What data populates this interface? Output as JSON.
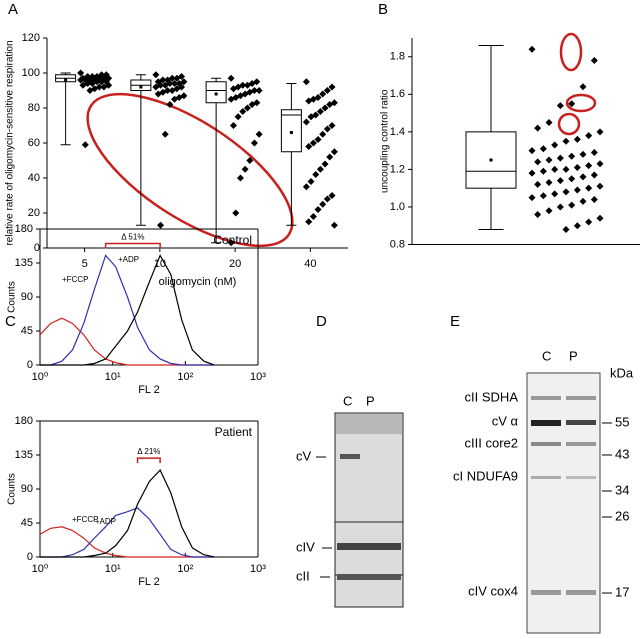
{
  "panels": [
    "A",
    "B",
    "C",
    "D",
    "E"
  ],
  "chart_data": [
    {
      "type": "box",
      "x_label": "oligomycin (nM)",
      "y_label": "relative rate of oligomycin-sensitive respiration",
      "categories": [
        "5",
        "10",
        "20",
        "40"
      ],
      "boxes": {
        "low": [
          59,
          13,
          3,
          13
        ],
        "q1": [
          95,
          90,
          83,
          55
        ],
        "median": [
          97,
          93,
          90,
          76
        ],
        "q3": [
          99,
          96,
          95,
          79
        ],
        "high": [
          100,
          99,
          97,
          94
        ],
        "mean": [
          96,
          92,
          88,
          66
        ]
      },
      "points": [
        [
          100,
          99,
          99,
          98,
          98,
          98,
          97,
          97,
          97,
          97,
          96,
          96,
          96,
          96,
          95,
          95,
          95,
          94,
          94,
          93,
          93,
          92,
          92,
          91,
          90,
          59
        ],
        [
          99,
          98,
          97,
          97,
          96,
          96,
          95,
          95,
          94,
          94,
          94,
          93,
          93,
          92,
          92,
          91,
          90,
          90,
          89,
          88,
          87,
          86,
          85,
          82,
          65,
          13
        ],
        [
          97,
          95,
          94,
          93,
          93,
          92,
          91,
          90,
          90,
          89,
          88,
          87,
          86,
          85,
          83,
          82,
          80,
          78,
          75,
          70,
          65,
          60,
          50,
          45,
          40,
          20,
          3
        ],
        [
          95,
          92,
          90,
          88,
          86,
          85,
          84,
          83,
          82,
          80,
          78,
          76,
          75,
          72,
          70,
          68,
          65,
          62,
          60,
          58,
          55,
          52,
          48,
          45,
          42,
          38,
          35,
          30,
          28,
          25,
          22,
          18,
          15,
          13
        ]
      ],
      "color": "#000000",
      "ylim": [
        0,
        120
      ],
      "yticks": [
        0,
        20,
        40,
        60,
        80,
        100,
        120
      ]
    },
    {
      "type": "box",
      "y_label": "uncoupling control ratio",
      "boxes": {
        "low": [
          0.88
        ],
        "q1": [
          1.1
        ],
        "median": [
          1.19
        ],
        "q3": [
          1.4
        ],
        "high": [
          1.86
        ],
        "mean": [
          1.25
        ]
      },
      "points": [
        [
          1.84,
          1.78,
          1.64,
          1.55,
          1.54,
          1.45,
          1.42,
          1.4,
          1.38,
          1.36,
          1.35,
          1.33,
          1.31,
          1.3,
          1.29,
          1.28,
          1.27,
          1.26,
          1.25,
          1.24,
          1.23,
          1.22,
          1.21,
          1.2,
          1.2,
          1.19,
          1.18,
          1.17,
          1.16,
          1.15,
          1.14,
          1.13,
          1.12,
          1.11,
          1.1,
          1.09,
          1.08,
          1.07,
          1.06,
          1.05,
          1.04,
          1.03,
          1.01,
          1.0,
          0.98,
          0.96,
          0.94,
          0.92,
          0.9,
          0.88
        ]
      ],
      "color": "#000000",
      "ylim": [
        0.8,
        1.9
      ],
      "yticks": [
        0.8,
        {
          "value": 1,
          "label": "1.0"
        },
        1.2,
        1.4,
        1.6,
        1.8
      ]
    },
    {
      "type": "line",
      "title": "Control",
      "x_label": "FL 2",
      "y_label": "Counts",
      "bracket_label": "Δ 51%",
      "x": [
        1,
        1.4,
        2,
        2.8,
        4,
        5.6,
        8,
        11,
        16,
        22,
        32,
        45,
        63,
        89,
        125,
        180,
        250
      ],
      "series": [
        {
          "name": "+FCCP",
          "color": "#d62020",
          "values": [
            40,
            55,
            62,
            55,
            40,
            20,
            8,
            3,
            0,
            0,
            0,
            0,
            0,
            0,
            0,
            0,
            0
          ]
        },
        {
          "name": "+ADP",
          "color": "#3030b0",
          "values": [
            0,
            0,
            5,
            20,
            55,
            100,
            145,
            130,
            90,
            50,
            20,
            8,
            2,
            0,
            0,
            0,
            0
          ]
        },
        {
          "color": "#000000",
          "values": [
            0,
            0,
            0,
            0,
            0,
            2,
            8,
            25,
            45,
            70,
            110,
            145,
            120,
            60,
            20,
            5,
            0
          ]
        }
      ],
      "log_x": true,
      "xlim": [
        1,
        1000
      ],
      "xticks": [
        {
          "value": 1,
          "label": "10⁰"
        },
        {
          "value": 10,
          "label": "10¹"
        },
        {
          "value": 100,
          "label": "10²"
        },
        {
          "value": 1000,
          "label": "10³"
        }
      ],
      "ylim": [
        0,
        180
      ],
      "yticks": [
        0,
        45,
        90,
        135,
        180
      ]
    },
    {
      "type": "line",
      "title": "Patient",
      "x_label": "FL 2",
      "y_label": "Counts",
      "bracket_label": "Δ 21%",
      "x": [
        1,
        1.4,
        2,
        2.8,
        4,
        5.6,
        8,
        11,
        16,
        22,
        32,
        45,
        63,
        89,
        125,
        180,
        250
      ],
      "series": [
        {
          "name": "+FCCP",
          "color": "#d62020",
          "values": [
            30,
            38,
            40,
            35,
            25,
            12,
            5,
            2,
            0,
            0,
            0,
            0,
            0,
            0,
            0,
            0,
            0
          ]
        },
        {
          "name": "+ADP",
          "color": "#3030b0",
          "values": [
            0,
            0,
            0,
            3,
            10,
            25,
            40,
            55,
            60,
            65,
            50,
            30,
            10,
            3,
            0,
            0,
            0
          ]
        },
        {
          "color": "#000000",
          "values": [
            0,
            0,
            0,
            0,
            0,
            2,
            5,
            15,
            35,
            70,
            100,
            115,
            85,
            40,
            12,
            3,
            0
          ]
        }
      ],
      "log_x": true,
      "xlim": [
        1,
        1000
      ],
      "xticks": [
        {
          "value": 1,
          "label": "10⁰"
        },
        {
          "value": 10,
          "label": "10¹"
        },
        {
          "value": 100,
          "label": "10²"
        },
        {
          "value": 1000,
          "label": "10³"
        }
      ],
      "ylim": [
        0,
        180
      ],
      "yticks": [
        0,
        45,
        90,
        135,
        180
      ]
    }
  ],
  "blots": {
    "D": {
      "lanes": [
        "C",
        "P"
      ],
      "complexes": [
        "cV",
        "cIV",
        "cII"
      ]
    },
    "E": {
      "lanes": [
        "C",
        "P"
      ],
      "unit": "kDa",
      "proteins": [
        "cII SDHA",
        "cV α",
        "cIII core2",
        "cI NDUFA9",
        "cIV cox4"
      ],
      "markers": [
        "55",
        "43",
        "34",
        "26",
        "17"
      ]
    }
  }
}
